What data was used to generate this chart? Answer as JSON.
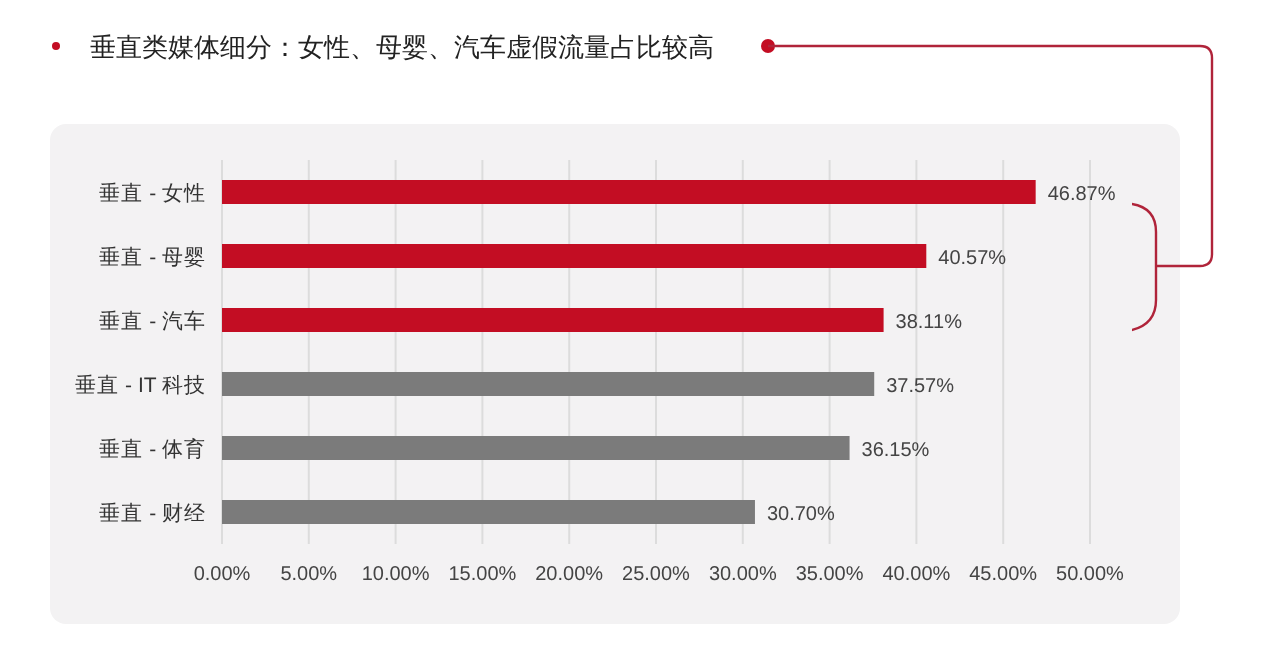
{
  "chart_data": {
    "type": "bar",
    "orientation": "horizontal",
    "title": "垂直类媒体细分：女性、母婴、汽车虚假流量占比较高",
    "categories": [
      "垂直 - 女性",
      "垂直 - 母婴",
      "垂直 - 汽车",
      "垂直 - IT 科技",
      "垂直 - 体育",
      "垂直 - 财经"
    ],
    "values": [
      46.87,
      40.57,
      38.11,
      37.57,
      36.15,
      30.7
    ],
    "colors": [
      "#c30d23",
      "#c30d23",
      "#c30d23",
      "#7b7b7b",
      "#7b7b7b",
      "#7b7b7b"
    ],
    "value_labels": [
      "46.87%",
      "40.57%",
      "38.11%",
      "37.57%",
      "36.15%",
      "30.70%"
    ],
    "xlim": [
      0,
      50
    ],
    "xticks": [
      {
        "value": 0,
        "label": "0.00%"
      },
      {
        "value": 5,
        "label": "5.00%"
      },
      {
        "value": 10,
        "label": "10.00%"
      },
      {
        "value": 15,
        "label": "15.00%"
      },
      {
        "value": 20,
        "label": "20.00%"
      },
      {
        "value": 25,
        "label": "25.00%"
      },
      {
        "value": 30,
        "label": "30.00%"
      },
      {
        "value": 35,
        "label": "35.00%"
      },
      {
        "value": 40,
        "label": "40.00%"
      },
      {
        "value": 45,
        "label": "45.00%"
      },
      {
        "value": 50,
        "label": "50.00%"
      }
    ],
    "grid": "x"
  }
}
